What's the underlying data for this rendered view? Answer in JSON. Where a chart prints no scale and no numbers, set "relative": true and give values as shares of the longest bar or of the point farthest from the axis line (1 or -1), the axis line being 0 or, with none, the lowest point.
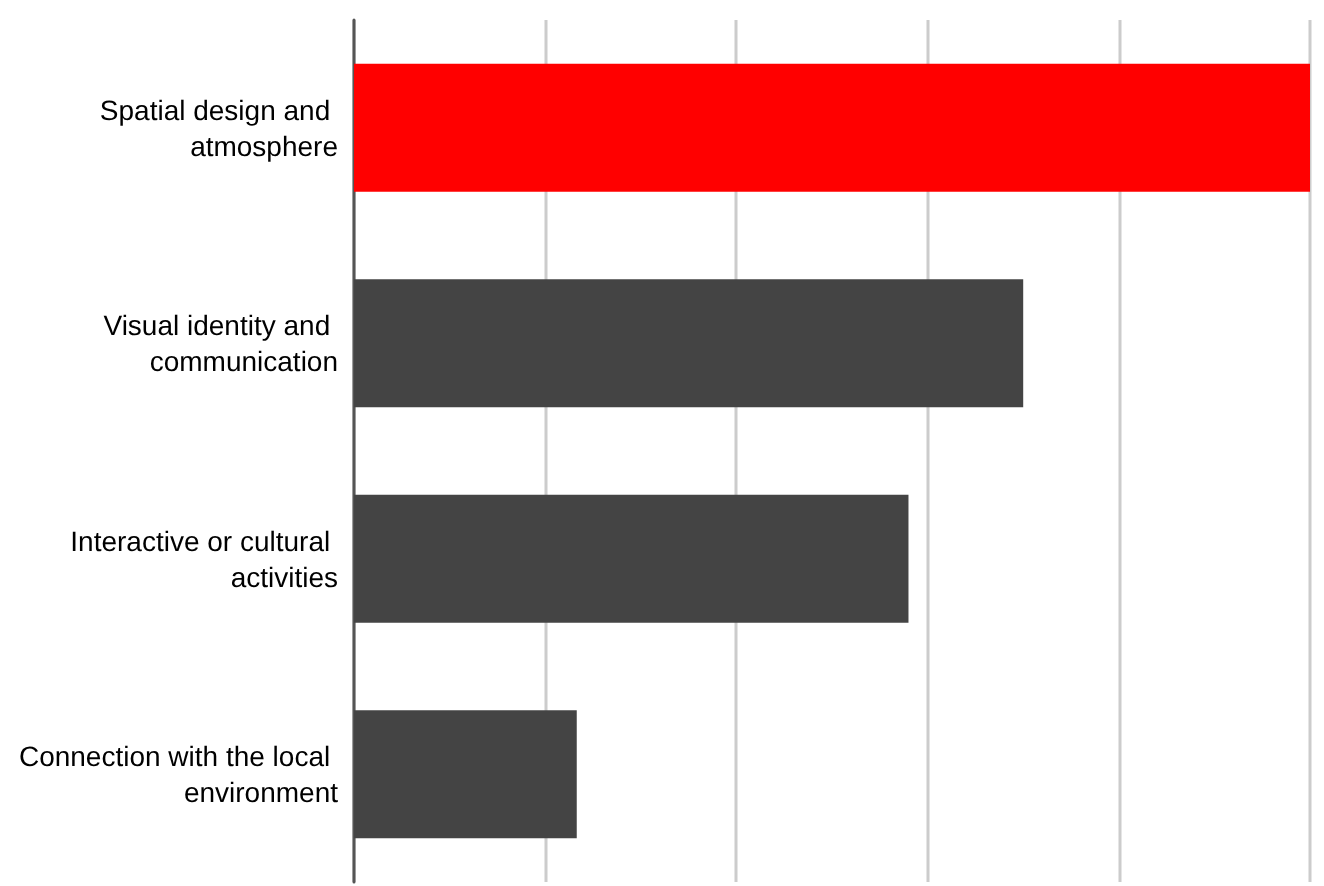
{
  "chart_data": {
    "type": "bar",
    "orientation": "horizontal",
    "relative": true,
    "grid": "x",
    "categories": [
      "Spatial design and atmosphere",
      "Visual identity and communication",
      "Interactive or cultural activities",
      "Connection with the local environment"
    ],
    "values": [
      1,
      0.7,
      0.58,
      0.233
    ],
    "colors": [
      "#ff0000",
      "#444444",
      "#444444",
      "#444444"
    ]
  }
}
